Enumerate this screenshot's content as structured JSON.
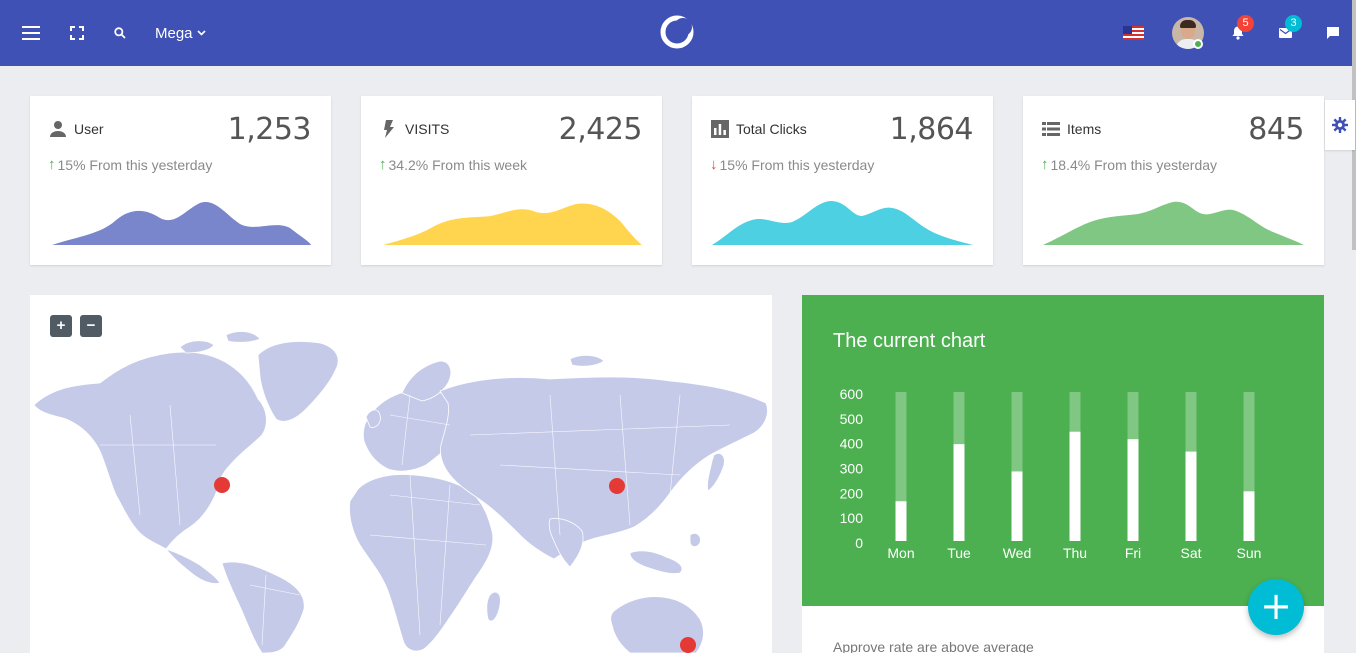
{
  "topbar": {
    "menu_label": "Mega",
    "notifications_count": "5",
    "messages_count": "3",
    "background": "#3f51b5"
  },
  "stats": [
    {
      "icon": "user-icon",
      "label": "User",
      "value": "1,253",
      "trend_dir": "up",
      "trend_text": "15% From this yesterday",
      "color": "#7986cb"
    },
    {
      "icon": "bolt-icon",
      "label": "VISITS",
      "value": "2,425",
      "trend_dir": "up",
      "trend_text": "34.2% From this week",
      "color": "#ffd54f"
    },
    {
      "icon": "bar-chart-icon",
      "label": "Total Clicks",
      "value": "1,864",
      "trend_dir": "down",
      "trend_text": "15% From this yesterday",
      "color": "#4dd0e1"
    },
    {
      "icon": "list-icon",
      "label": "Items",
      "value": "845",
      "trend_dir": "up",
      "trend_text": "18.4% From this yesterday",
      "color": "#81c784"
    }
  ],
  "map": {
    "zoom_in": "+",
    "zoom_out": "−",
    "land_color": "#c5cae9",
    "marker_color": "#e53935"
  },
  "current_chart": {
    "title": "The current chart",
    "footer_text": "Approve rate are above average",
    "fab_label": "+"
  },
  "chart_data": {
    "type": "bar",
    "title": "The current chart",
    "categories": [
      "Mon",
      "Tue",
      "Wed",
      "Thu",
      "Fri",
      "Sat",
      "Sun"
    ],
    "values": [
      160,
      390,
      280,
      440,
      410,
      360,
      200
    ],
    "max": 600,
    "ylim": [
      0,
      600
    ],
    "yticks": [
      0,
      100,
      200,
      300,
      400,
      500,
      600
    ],
    "bar_color": "#ffffff",
    "track_color": "#81c784"
  }
}
